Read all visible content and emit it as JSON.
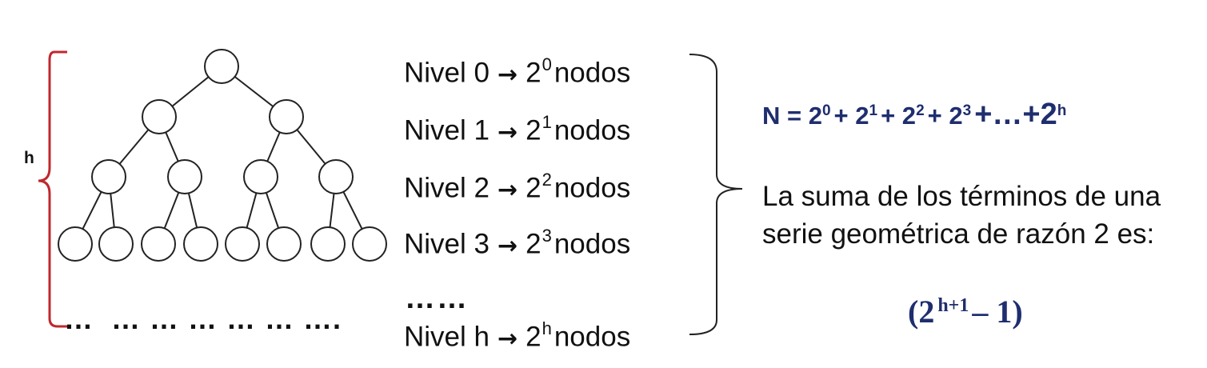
{
  "left_label": "h",
  "bottom_dots": "…  … … … … … ….",
  "levels": [
    {
      "prefix": "Nivel 0",
      "base": "2",
      "exp": "0",
      "suffix": "nodos"
    },
    {
      "prefix": "Nivel 1",
      "base": "2",
      "exp": "1",
      "suffix": "nodos"
    },
    {
      "prefix": "Nivel 2",
      "base": "2",
      "exp": "2",
      "suffix": "nodos"
    },
    {
      "prefix": "Nivel 3",
      "base": "2",
      "exp": "3",
      "suffix": "nodos"
    },
    {
      "prefix": "Nivel h",
      "base": "2",
      "exp": "h",
      "suffix": "nodos"
    }
  ],
  "ellipsis": "……",
  "arrow_glyph": "→",
  "formula": {
    "lhs": "N = 2",
    "e0": "0",
    "p1": "+ 2",
    "e1": "1",
    "p2": "+ 2",
    "e2": "2",
    "p3": "+ 2",
    "e3": "3",
    "tail": "+…+2",
    "eh": "h"
  },
  "description": "La suma de los términos de una serie geométrica de razón 2 es:",
  "result": {
    "open": "(2",
    "exp": "h+1",
    "close": "– 1)"
  },
  "colors": {
    "bracket_left": "#c0282d",
    "formula": "#1f2e6e",
    "text": "#111111"
  },
  "tree": {
    "levels": 4,
    "node_fill": "#ffffff",
    "node_stroke": "#222222"
  }
}
